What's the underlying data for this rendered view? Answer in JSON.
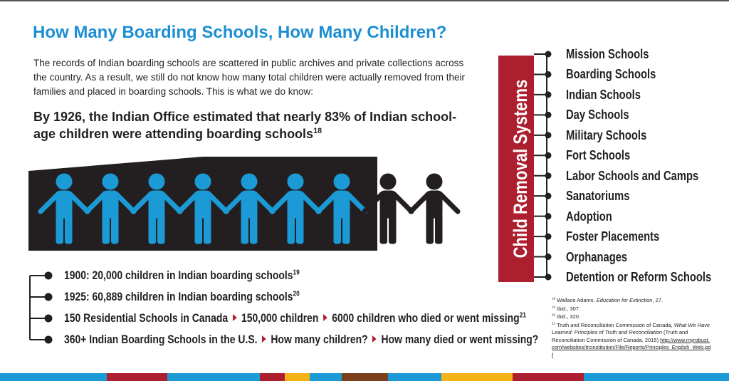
{
  "title": "How Many Boarding Schools, How Many Children?",
  "intro": "The records of Indian boarding schools are scattered in public archives and private collections across the country. As a result, we still do not know how many total children were actually removed from their families and placed in boarding schools. This is what we do know:",
  "stat": {
    "text": "By 1926, the Indian Office estimated that nearly 83% of Indian school-age children were attending boarding schools",
    "note": "18"
  },
  "timeline": [
    {
      "parts": [
        "1900: 20,000 children in Indian boarding schools"
      ],
      "note": "19"
    },
    {
      "parts": [
        "1925: 60,889 children in Indian boarding schools"
      ],
      "note": "20"
    },
    {
      "parts": [
        "150 Residential Schools in Canada",
        "150,000 children",
        "6000 children who died or went missing"
      ],
      "note": "21"
    },
    {
      "parts": [
        "360+ Indian Boarding Schools in the U.S.",
        "How many children?",
        "How many died or went missing?"
      ]
    }
  ],
  "sidebar": {
    "label": "Child Removal Systems",
    "items": [
      "Mission Schools",
      "Boarding Schools",
      "Indian Schools",
      "Day Schools",
      "Military Schools",
      "Fort Schools",
      "Labor Schools and Camps",
      "Sanatoriums",
      "Adoption",
      "Foster Placements",
      "Orphanages",
      "Detention or Reform Schools"
    ]
  },
  "footnotes": [
    {
      "number": "18",
      "parts": [
        "Wallace Adams, ",
        "Education for Extinction",
        ", 27."
      ]
    },
    {
      "number": "19",
      "parts": [
        "Ibid., 307."
      ]
    },
    {
      "number": "20",
      "parts": [
        "Ibid., 320."
      ]
    },
    {
      "number": "21",
      "parts": [
        "Truth and Reconciliation Commission of Canada, ",
        "What We Have Learned: Principles of Truth and Reconciliation",
        " (Truth and Reconciliation Commission of Canada, 2015) ",
        "http://www.myrobust.com/websites/trcinstitution/File/Reports/Principles_English_Web.pdf"
      ]
    }
  ]
}
